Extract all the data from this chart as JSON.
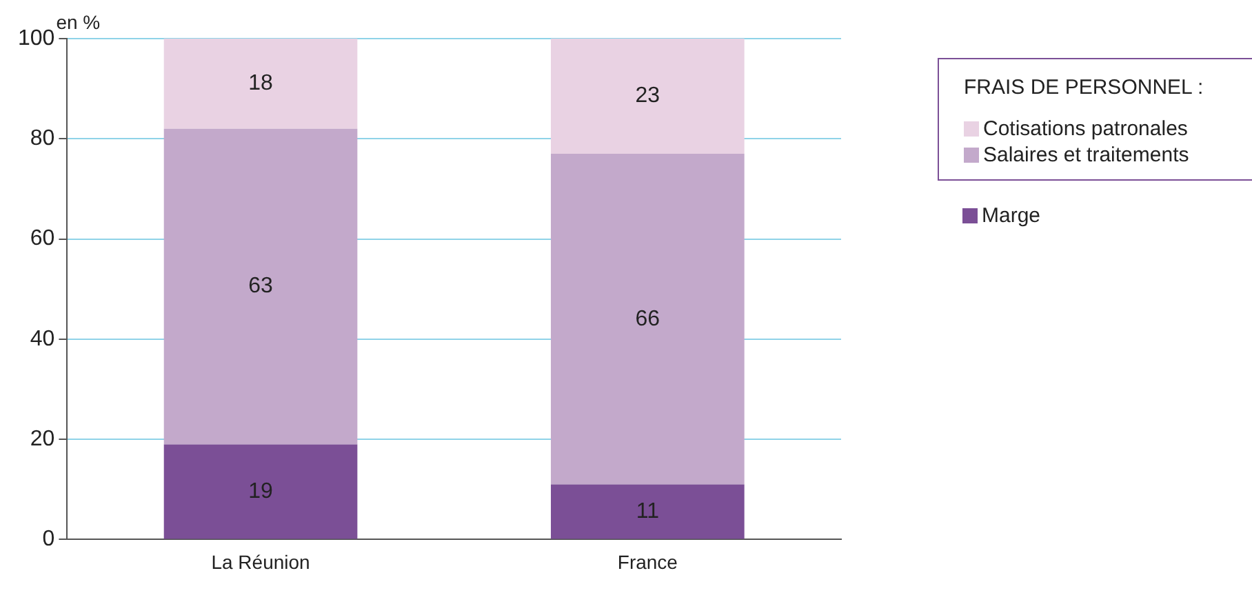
{
  "chart_data": {
    "type": "bar",
    "stacked": true,
    "ylabel": "en %",
    "legend_title": "FRAIS DE PERSONNEL :",
    "categories": [
      "La Réunion",
      "France"
    ],
    "series": [
      {
        "name": "Marge",
        "color": "#7b4f96",
        "values": [
          19,
          11
        ]
      },
      {
        "name": "Salaires et traitements",
        "color": "#c3a9cb",
        "values": [
          63,
          66
        ]
      },
      {
        "name": "Cotisations patronales",
        "color": "#e9d2e3",
        "values": [
          18,
          23
        ]
      }
    ],
    "ylim": [
      0,
      100
    ],
    "yticks": [
      0,
      20,
      40,
      60,
      80,
      100
    ],
    "grid": "y",
    "legend": "right",
    "data_labels": true
  }
}
